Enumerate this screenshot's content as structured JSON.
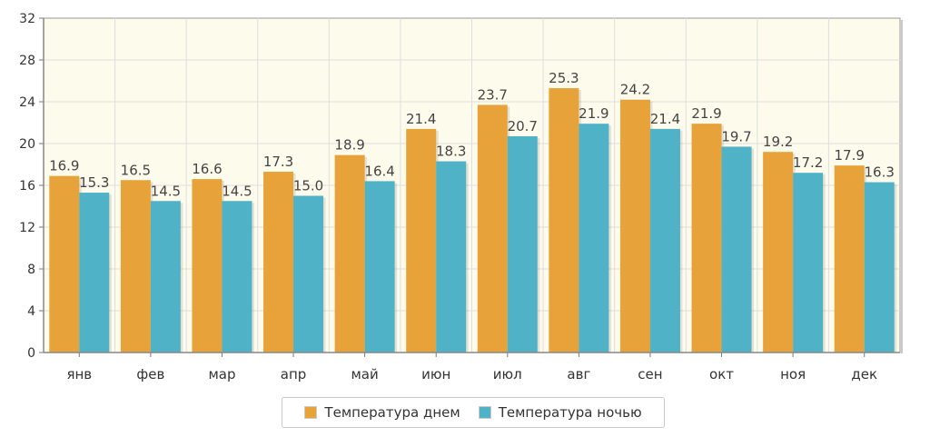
{
  "chart_data": {
    "type": "bar",
    "categories": [
      "янв",
      "фев",
      "мар",
      "апр",
      "май",
      "июн",
      "июл",
      "авг",
      "сен",
      "окт",
      "ноя",
      "дек"
    ],
    "series": [
      {
        "name": "Температура днем",
        "color": "#e8a23a",
        "values": [
          16.9,
          16.5,
          16.6,
          17.3,
          18.9,
          21.4,
          23.7,
          25.3,
          24.2,
          21.9,
          19.2,
          17.9
        ]
      },
      {
        "name": "Температура ночью",
        "color": "#4fb2c7",
        "values": [
          15.3,
          14.5,
          14.5,
          15.0,
          16.4,
          18.3,
          20.7,
          21.9,
          21.4,
          19.7,
          17.2,
          16.3
        ]
      }
    ],
    "ylim": [
      0,
      32
    ],
    "yticks": [
      0,
      4,
      8,
      12,
      16,
      20,
      24,
      28,
      32
    ],
    "grid": true,
    "legend_position": "bottom-center",
    "plot_background": "#fdfbeb"
  }
}
